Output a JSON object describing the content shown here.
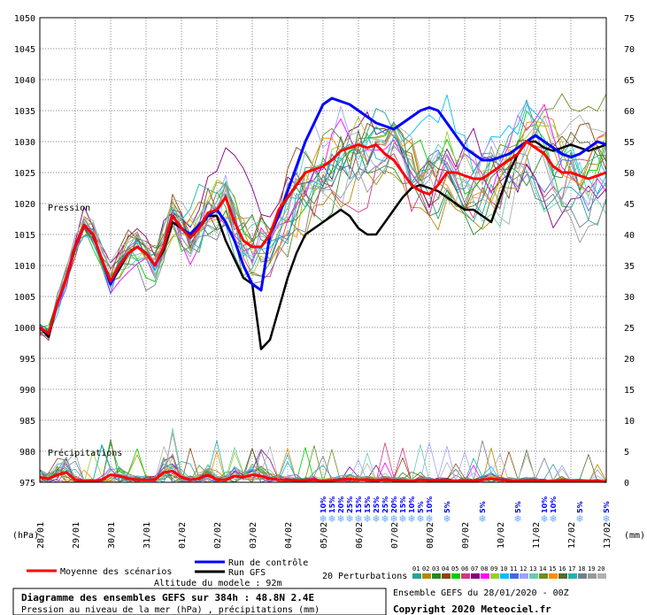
{
  "chart_data": {
    "type": "line",
    "section_labels": {
      "pressure": "Pression",
      "precip": "Précipitations"
    },
    "left_axis": {
      "label": "(hPa)",
      "ticks": [
        975,
        980,
        985,
        990,
        995,
        1000,
        1005,
        1010,
        1015,
        1020,
        1025,
        1030,
        1035,
        1040,
        1045,
        1050
      ],
      "ylim": [
        975,
        1050
      ]
    },
    "right_axis": {
      "label": "(mm)",
      "ticks": [
        0,
        5,
        10,
        15,
        20,
        25,
        30,
        35,
        40,
        45,
        50,
        55,
        60,
        65,
        70,
        75
      ],
      "ylim": [
        0,
        75
      ]
    },
    "x_dates": [
      "28/01",
      "29/01",
      "30/01",
      "31/01",
      "01/02",
      "02/02",
      "03/02",
      "04/02",
      "05/02",
      "06/02",
      "07/02",
      "08/02",
      "09/02",
      "10/02",
      "11/02",
      "12/02",
      "13/02"
    ],
    "x_range_days": [
      0,
      16
    ],
    "series": [
      {
        "name": "Moyenne des scénarios",
        "color": "#ff0000",
        "x": [
          0,
          0.25,
          0.5,
          0.75,
          1,
          1.25,
          1.5,
          1.75,
          2,
          2.25,
          2.5,
          2.75,
          3,
          3.25,
          3.5,
          3.75,
          4,
          4.25,
          4.5,
          4.75,
          5,
          5.25,
          5.5,
          5.75,
          6,
          6.25,
          6.5,
          6.75,
          7,
          7.25,
          7.5,
          7.75,
          8,
          8.25,
          8.5,
          8.75,
          9,
          9.25,
          9.5,
          9.75,
          10,
          10.25,
          10.5,
          10.75,
          11,
          11.25,
          11.5,
          11.75,
          12,
          12.25,
          12.5,
          12.75,
          13,
          13.25,
          13.5,
          13.75,
          14,
          14.25,
          14.5,
          14.75,
          15,
          15.25,
          15.5,
          15.75,
          16
        ],
        "y": [
          1000,
          999,
          1004,
          1008,
          1013,
          1016.5,
          1015,
          1011,
          1007.5,
          1010,
          1012,
          1013,
          1012,
          1010,
          1013,
          1018,
          1016,
          1014.5,
          1016,
          1018.5,
          1019,
          1021,
          1017,
          1014,
          1013,
          1013,
          1015,
          1019,
          1021,
          1023,
          1025,
          1025.5,
          1026,
          1027,
          1028.5,
          1029,
          1029.5,
          1029,
          1029.5,
          1028,
          1027,
          1025,
          1023,
          1022,
          1021.5,
          1023,
          1025,
          1025,
          1024.5,
          1024,
          1024,
          1025,
          1026,
          1027,
          1028,
          1030,
          1029,
          1028,
          1026,
          1025,
          1025,
          1024.5,
          1024,
          1024.5,
          1025
        ]
      },
      {
        "name": "Run de contrôle",
        "color": "#0000ff",
        "x": [
          0,
          0.25,
          0.5,
          0.75,
          1,
          1.25,
          1.5,
          1.75,
          2,
          2.25,
          2.5,
          2.75,
          3,
          3.25,
          3.5,
          3.75,
          4,
          4.25,
          4.5,
          4.75,
          5,
          5.25,
          5.5,
          5.75,
          6,
          6.25,
          6.5,
          6.75,
          7,
          7.25,
          7.5,
          7.75,
          8,
          8.25,
          8.5,
          8.75,
          9,
          9.25,
          9.5,
          9.75,
          10,
          10.25,
          10.5,
          10.75,
          11,
          11.25,
          11.5,
          11.75,
          12,
          12.25,
          12.5,
          12.75,
          13,
          13.25,
          13.5,
          13.75,
          14,
          14.25,
          14.5,
          14.75,
          15,
          15.25,
          15.5,
          15.75,
          16
        ],
        "y": [
          1000,
          999,
          1004,
          1008,
          1013,
          1016.5,
          1015,
          1011,
          1007,
          1010,
          1012,
          1013,
          1012,
          1010,
          1013,
          1018,
          1016,
          1015,
          1016.5,
          1018,
          1019,
          1017,
          1014,
          1010,
          1007,
          1006,
          1015,
          1018,
          1022,
          1026,
          1030,
          1033,
          1036,
          1037,
          1036.5,
          1036,
          1035,
          1034,
          1033,
          1032.5,
          1032,
          1033,
          1034,
          1035,
          1035.5,
          1035,
          1033,
          1031,
          1029,
          1028,
          1027,
          1027,
          1027.5,
          1028,
          1029,
          1030,
          1031,
          1030,
          1029,
          1028,
          1027.5,
          1028,
          1029,
          1030,
          1029.5
        ]
      },
      {
        "name": "Run GFS",
        "color": "#000000",
        "x": [
          0,
          0.25,
          0.5,
          0.75,
          1,
          1.25,
          1.5,
          1.75,
          2,
          2.25,
          2.5,
          2.75,
          3,
          3.25,
          3.5,
          3.75,
          4,
          4.25,
          4.5,
          4.75,
          5,
          5.25,
          5.5,
          5.75,
          6,
          6.25,
          6.5,
          6.75,
          7,
          7.25,
          7.5,
          7.75,
          8,
          8.25,
          8.5,
          8.75,
          9,
          9.25,
          9.5,
          9.75,
          10,
          10.25,
          10.5,
          10.75,
          11,
          11.25,
          11.5,
          11.75,
          12,
          12.25,
          12.5,
          12.75,
          13,
          13.25,
          13.5,
          13.75,
          14,
          14.25,
          14.5,
          14.75,
          15,
          15.25,
          15.5,
          15.75,
          16
        ],
        "y": [
          1000,
          998.5,
          1004,
          1008,
          1013,
          1016.5,
          1015,
          1011,
          1007,
          1009.5,
          1012,
          1013,
          1012,
          1010,
          1012.5,
          1017,
          1016,
          1014.5,
          1016,
          1018,
          1018,
          1014,
          1011,
          1008,
          1007,
          996.5,
          998,
          1003,
          1008,
          1012,
          1015,
          1016,
          1017,
          1018,
          1019,
          1018,
          1016,
          1015,
          1015,
          1017,
          1019,
          1021,
          1022.5,
          1023,
          1022.5,
          1022,
          1021,
          1020,
          1019,
          1019,
          1018,
          1017,
          1021,
          1025,
          1028,
          1030,
          1030,
          1029,
          1028.5,
          1029,
          1029.5,
          1029,
          1028.5,
          1029,
          1029.5
        ]
      }
    ],
    "precip_mean_mm": [
      0.8,
      0.6,
      1.2,
      1.6,
      0.4,
      0.2,
      0.2,
      0.4,
      1.2,
      1.0,
      0.6,
      0.4,
      0.4,
      0.4,
      1.6,
      1.8,
      0.8,
      0.4,
      0.6,
      1.2,
      0.4,
      0.4,
      1.0,
      0.8,
      1.2,
      1.0,
      0.6,
      0.4,
      0.4,
      0.3,
      0.3,
      0.4,
      0.2,
      0.3,
      0.4,
      0.5,
      0.4,
      0.4,
      0.3,
      0.4,
      0.3,
      0.3,
      0.2,
      0.4,
      0.3,
      0.3,
      0.3,
      0.2,
      0.3,
      0.2,
      0.4,
      0.6,
      0.4,
      0.3,
      0.2,
      0.3,
      0.3,
      0.2,
      0.2,
      0.3,
      0.2,
      0.2,
      0.2,
      0.2,
      0.1
    ],
    "snow_markers": [
      {
        "x": 8.0,
        "pct": "10%"
      },
      {
        "x": 8.25,
        "pct": "15%"
      },
      {
        "x": 8.5,
        "pct": "20%"
      },
      {
        "x": 8.75,
        "pct": "25%"
      },
      {
        "x": 9.0,
        "pct": "15%"
      },
      {
        "x": 9.25,
        "pct": "15%"
      },
      {
        "x": 9.5,
        "pct": "25%"
      },
      {
        "x": 9.75,
        "pct": "25%"
      },
      {
        "x": 10.0,
        "pct": "20%"
      },
      {
        "x": 10.25,
        "pct": "15%"
      },
      {
        "x": 10.5,
        "pct": "10%"
      },
      {
        "x": 10.75,
        "pct": "5%"
      },
      {
        "x": 11.0,
        "pct": "10%"
      },
      {
        "x": 11.5,
        "pct": "5%"
      },
      {
        "x": 12.5,
        "pct": "5%"
      },
      {
        "x": 13.5,
        "pct": "5%"
      },
      {
        "x": 14.25,
        "pct": "10%"
      },
      {
        "x": 14.5,
        "pct": "10%"
      },
      {
        "x": 15.25,
        "pct": "5%"
      },
      {
        "x": 16.0,
        "pct": "5%"
      }
    ]
  },
  "legend": {
    "mean": "Moyenne des scénarios",
    "control": "Run de contrôle",
    "gfs": "Run GFS",
    "perturbations": "20 Perturbations",
    "altitude": "Altitude du modele : 92m",
    "pert_numbers": [
      "01",
      "02",
      "03",
      "04",
      "05",
      "06",
      "07",
      "08",
      "09",
      "10",
      "11",
      "12",
      "13",
      "14",
      "15",
      "16",
      "17",
      "18",
      "19",
      "20"
    ],
    "pert_colors": [
      "#2aa198",
      "#b58900",
      "#228b22",
      "#8b4513",
      "#00cc00",
      "#d33682",
      "#800080",
      "#ff00ff",
      "#9acd32",
      "#00bfff",
      "#4169e1",
      "#a0a0ff",
      "#66cdaa",
      "#6b8e23",
      "#ff8c00",
      "#556b2f",
      "#20b2aa",
      "#708090",
      "#999999",
      "#b0b0b0"
    ]
  },
  "footer": {
    "title": "Diagramme des ensembles GEFS sur 384h : 48.8N 2.4E",
    "subtitle": "Pression au niveau de la mer (hPa) , précipitations (mm)",
    "run": "Ensemble GEFS du 28/01/2020 - 00Z",
    "copyright": "Copyright 2020 Meteociel.fr"
  }
}
